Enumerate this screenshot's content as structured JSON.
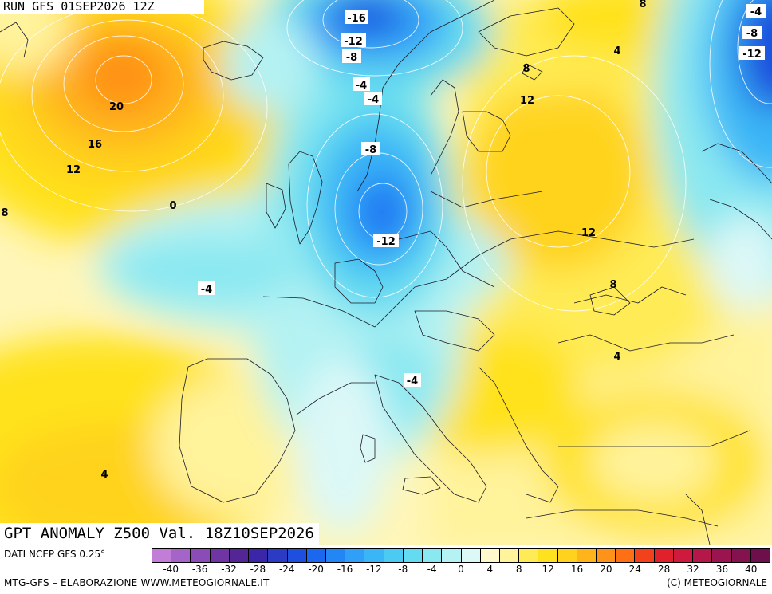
{
  "header": {
    "run_label": "RUN GFS 01SEP2026 12Z"
  },
  "map": {
    "title": "GPT ANOMALY Z500 Val. 18Z10SEP2026",
    "contour_labels": [
      "-16",
      "-12",
      "-8",
      "-4",
      "-4",
      "-8",
      "-12",
      "-4",
      "-4",
      "0",
      "8",
      "12",
      "16",
      "20",
      "8",
      "12",
      "12",
      "8",
      "4",
      "4",
      "4",
      "-4",
      "-8",
      "-12",
      "8"
    ]
  },
  "legend": {
    "data_source": "DATI NCEP GFS 0.25°",
    "colors": [
      "#c27ed6",
      "#a565c8",
      "#8a4cb6",
      "#6e35a3",
      "#542695",
      "#3b25a8",
      "#2c3bc4",
      "#1f4fde",
      "#1c67f0",
      "#2386f5",
      "#2f9ff7",
      "#3ab6f6",
      "#4bcaf3",
      "#64dbf0",
      "#8ae8f1",
      "#b4f2f3",
      "#dcf8f7",
      "#fff9cc",
      "#fff39b",
      "#ffeb55",
      "#ffe21f",
      "#ffd31d",
      "#ffb41c",
      "#ff9218",
      "#ff7014",
      "#f2411b",
      "#e0202a",
      "#cd1a3d",
      "#b51748",
      "#9b1450",
      "#83124f",
      "#6c0f4a"
    ],
    "tick_labels": [
      "-40",
      "-36",
      "-32",
      "-28",
      "-24",
      "-20",
      "-16",
      "-12",
      "-8",
      "-4",
      "0",
      "4",
      "8",
      "12",
      "16",
      "20",
      "24",
      "28",
      "32",
      "36",
      "40"
    ]
  },
  "footer": {
    "credit_left": "MTG-GFS – ELABORAZIONE WWW.METEOGIORNALE.IT",
    "credit_right": "(C) METEOGIORNALE"
  }
}
